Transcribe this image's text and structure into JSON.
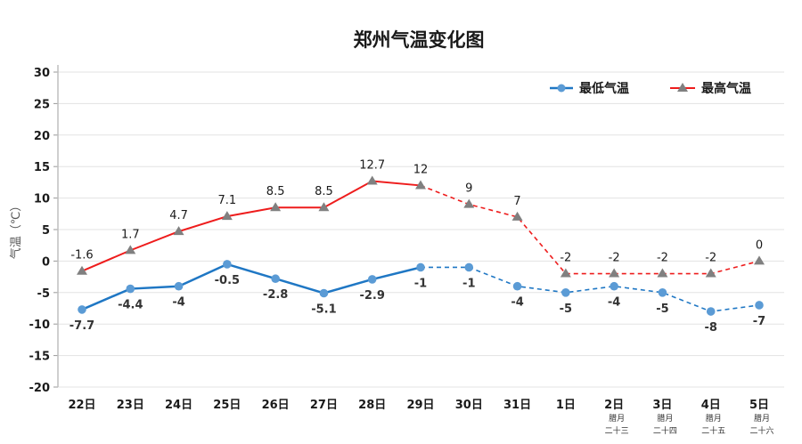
{
  "chart_data": {
    "type": "line",
    "title": "郑州气温变化图",
    "xlabel": "",
    "ylabel": "气温（℃）",
    "ylim": [
      -20,
      30
    ],
    "yticks": [
      30,
      25,
      20,
      15,
      10,
      5,
      0,
      -5,
      -10,
      -15,
      -20
    ],
    "grid": true,
    "legend_position": "top-right",
    "categories": [
      "22日",
      "23日",
      "24日",
      "25日",
      "26日",
      "27日",
      "28日",
      "29日",
      "30日",
      "31日",
      "1日",
      "2日",
      "3日",
      "4日",
      "5日"
    ],
    "category_sublabels": [
      "",
      "",
      "",
      "",
      "",
      "",
      "",
      "",
      "",
      "",
      "",
      "腊月\n二十三",
      "腊月\n二十四",
      "腊月\n二十五",
      "腊月\n二十六"
    ],
    "forecast_starts_after_index": 7,
    "series": [
      {
        "name": "最低气温",
        "color": "#1f77c4",
        "marker_color": "#5b9bd5",
        "marker": "circle",
        "values": [
          -7.7,
          -4.4,
          -4,
          -0.5,
          -2.8,
          -5.1,
          -2.9,
          -1,
          -1,
          -4,
          -5,
          -4,
          -5,
          -8,
          -7
        ],
        "labels": [
          "-7.7",
          "-4.4",
          "-4",
          "-0.5",
          "-2.8",
          "-5.1",
          "-2.9",
          "-1",
          "-1",
          "-4",
          "-5",
          "-4",
          "-5",
          "-8",
          "-7"
        ]
      },
      {
        "name": "最高气温",
        "color": "#ee1c1c",
        "marker_color": "#808080",
        "marker": "triangle",
        "values": [
          -1.6,
          1.7,
          4.7,
          7.1,
          8.5,
          8.5,
          12.7,
          12,
          9,
          7,
          -2,
          -2,
          -2,
          -2,
          0
        ],
        "labels": [
          "-1.6",
          "1.7",
          "4.7",
          "7.1",
          "8.5",
          "8.5",
          "12.7",
          "12",
          "9",
          "7",
          "-2",
          "-2",
          "-2",
          "-2",
          "0"
        ]
      }
    ]
  }
}
